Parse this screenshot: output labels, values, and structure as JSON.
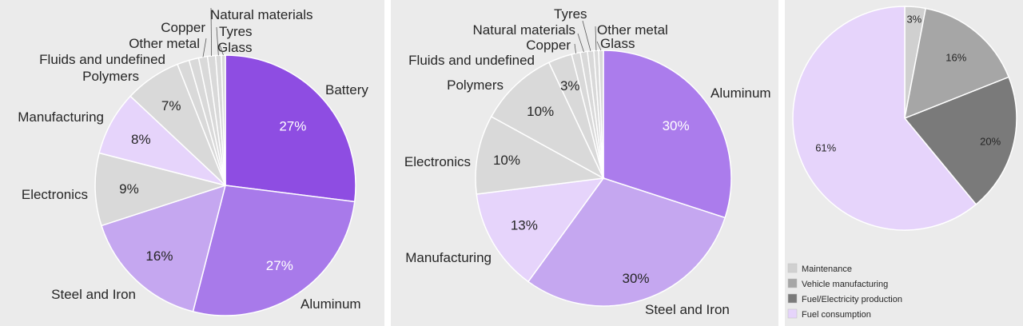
{
  "chart_data": [
    {
      "type": "pie",
      "title": "",
      "slices": [
        {
          "name": "Battery",
          "value": 27,
          "label": "27%",
          "color": "#8e4de2",
          "label_color": "#ffffff"
        },
        {
          "name": "Aluminum",
          "value": 27,
          "label": "27%",
          "color": "#a87aea",
          "label_color": "#ffffff"
        },
        {
          "name": "Steel and Iron",
          "value": 16,
          "label": "16%",
          "color": "#c5a7f0",
          "label_color": "#262626"
        },
        {
          "name": "Electronics",
          "value": 9,
          "label": "9%",
          "color": "#d9d9d9",
          "label_color": "#262626"
        },
        {
          "name": "Manufacturing",
          "value": 8,
          "label": "8%",
          "color": "#e6d4fb",
          "label_color": "#262626"
        },
        {
          "name": "Polymers",
          "value": 7,
          "label": "7%",
          "color": "#d9d9d9",
          "label_color": "#262626"
        },
        {
          "name": "Fluids and undefined",
          "value": 1.5,
          "label": "",
          "color": "#d9d9d9",
          "label_color": "#262626"
        },
        {
          "name": "Other metal",
          "value": 1.2,
          "label": "",
          "color": "#d9d9d9",
          "label_color": "#262626"
        },
        {
          "name": "Copper",
          "value": 1.1,
          "label": "",
          "color": "#d9d9d9",
          "label_color": "#262626"
        },
        {
          "name": "Natural materials",
          "value": 1.0,
          "label": "",
          "color": "#d9d9d9",
          "label_color": "#262626"
        },
        {
          "name": "Tyres",
          "value": 0.7,
          "label": "",
          "color": "#d9d9d9",
          "label_color": "#262626"
        },
        {
          "name": "Glass",
          "value": 0.5,
          "label": "",
          "color": "#d9d9d9",
          "label_color": "#262626"
        }
      ]
    },
    {
      "type": "pie",
      "title": "",
      "slices": [
        {
          "name": "Aluminum",
          "value": 30,
          "label": "30%",
          "color": "#ab7cec",
          "label_color": "#ffffff"
        },
        {
          "name": "Steel and Iron",
          "value": 30,
          "label": "30%",
          "color": "#c5a7f0",
          "label_color": "#262626"
        },
        {
          "name": "Manufacturing",
          "value": 13,
          "label": "13%",
          "color": "#e6d4fb",
          "label_color": "#262626"
        },
        {
          "name": "Electronics",
          "value": 10,
          "label": "10%",
          "color": "#d9d9d9",
          "label_color": "#262626"
        },
        {
          "name": "Polymers",
          "value": 10,
          "label": "10%",
          "color": "#d9d9d9",
          "label_color": "#262626"
        },
        {
          "name": "Fluids and undefined",
          "value": 3,
          "label": "3%",
          "color": "#d9d9d9",
          "label_color": "#262626"
        },
        {
          "name": "Copper",
          "value": 1.1,
          "label": "",
          "color": "#d9d9d9",
          "label_color": "#262626"
        },
        {
          "name": "Natural materials",
          "value": 0.9,
          "label": "",
          "color": "#d9d9d9",
          "label_color": "#262626"
        },
        {
          "name": "Tyres",
          "value": 0.8,
          "label": "",
          "color": "#d9d9d9",
          "label_color": "#262626"
        },
        {
          "name": "Other metal",
          "value": 0.6,
          "label": "",
          "color": "#d9d9d9",
          "label_color": "#262626"
        },
        {
          "name": "Glass",
          "value": 0.6,
          "label": "",
          "color": "#d9d9d9",
          "label_color": "#262626"
        }
      ]
    },
    {
      "type": "pie",
      "title": "",
      "legend_position": "bottom-left",
      "slices": [
        {
          "name": "Maintenance",
          "value": 3,
          "label": "3%",
          "color": "#d0d0d0",
          "label_color": "#262626"
        },
        {
          "name": "Vehicle manufacturing",
          "value": 16,
          "label": "16%",
          "color": "#a6a6a6",
          "label_color": "#262626"
        },
        {
          "name": "Fuel/Electricity production",
          "value": 20,
          "label": "20%",
          "color": "#7a7a7a",
          "label_color": "#262626"
        },
        {
          "name": "Fuel consumption",
          "value": 61,
          "label": "61%",
          "color": "#e6d4fb",
          "label_color": "#262626"
        }
      ]
    }
  ]
}
